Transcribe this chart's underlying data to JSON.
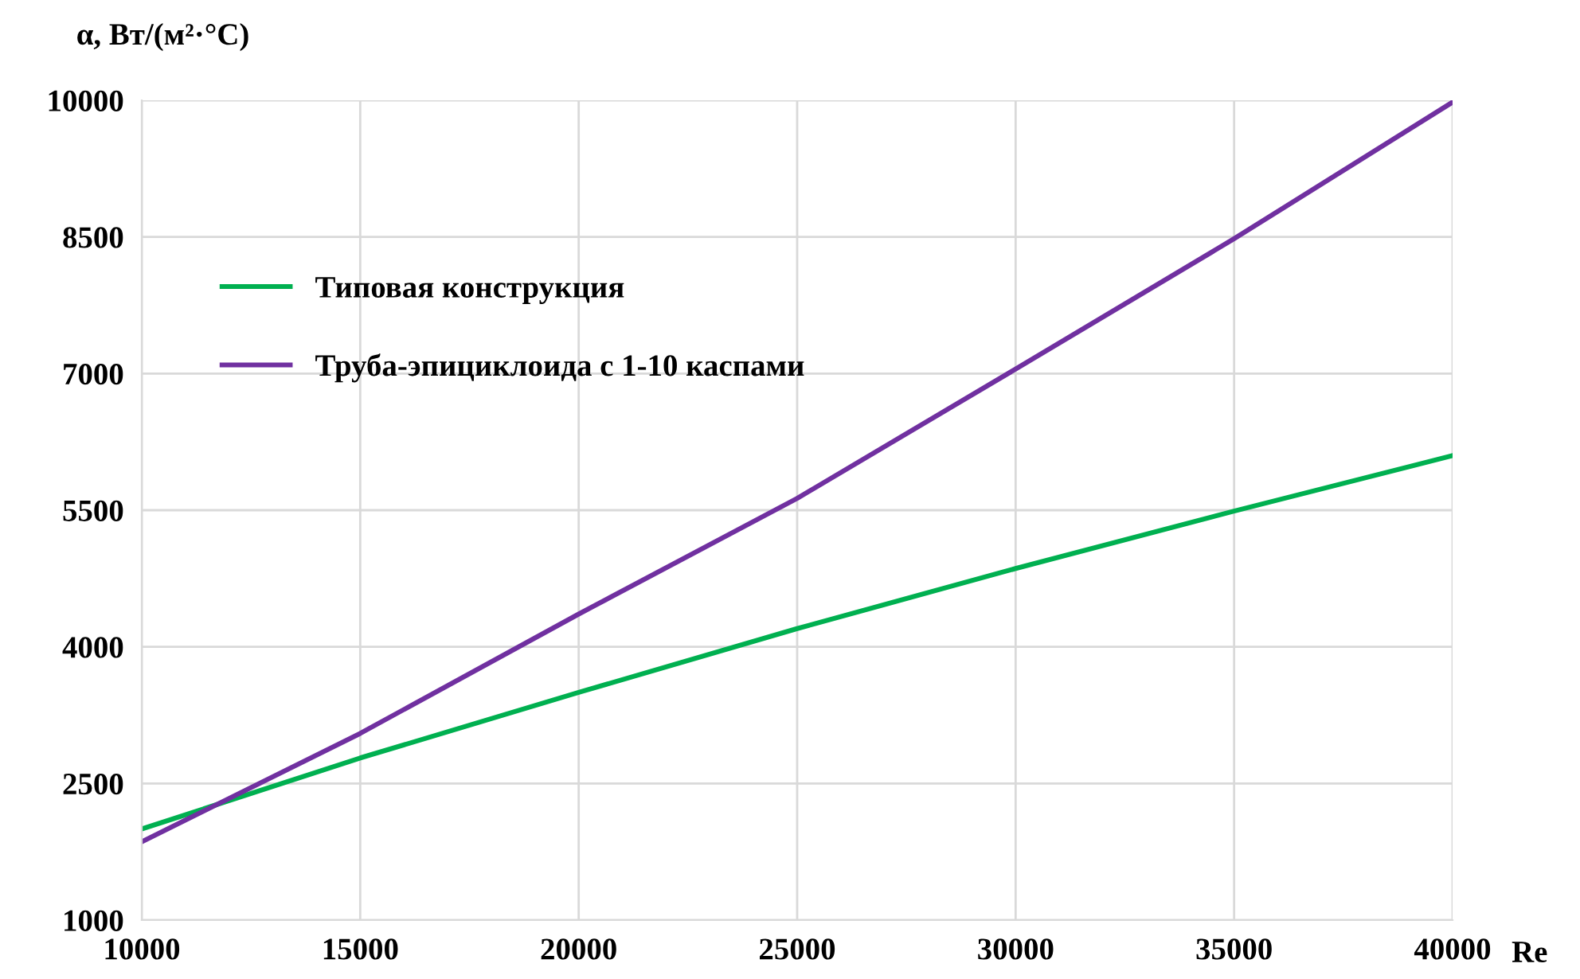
{
  "chart_data": {
    "type": "line",
    "ylabel": "α, Вт/(м²·°C)",
    "xlabel": "Re",
    "x": [
      10000,
      15000,
      20000,
      25000,
      30000,
      35000,
      40000
    ],
    "series": [
      {
        "name": "Типовая конструкция",
        "color": "#00b050",
        "values": [
          2000,
          2780,
          3500,
          4200,
          4860,
          5490,
          6100
        ]
      },
      {
        "name": "Труба-эпициклоида с 1-10 каспами",
        "color": "#7030a0",
        "values": [
          1860,
          3050,
          4360,
          5630,
          7050,
          8480,
          9980
        ]
      }
    ],
    "xlim": [
      10000,
      40000
    ],
    "xticks": [
      10000,
      15000,
      20000,
      25000,
      30000,
      35000,
      40000
    ],
    "ylim": [
      1000,
      10000
    ],
    "yticks": [
      1000,
      2500,
      4000,
      5500,
      7000,
      8500,
      10000
    ],
    "grid": true,
    "legend": "top left",
    "marker": "none",
    "line_style": "solid"
  }
}
